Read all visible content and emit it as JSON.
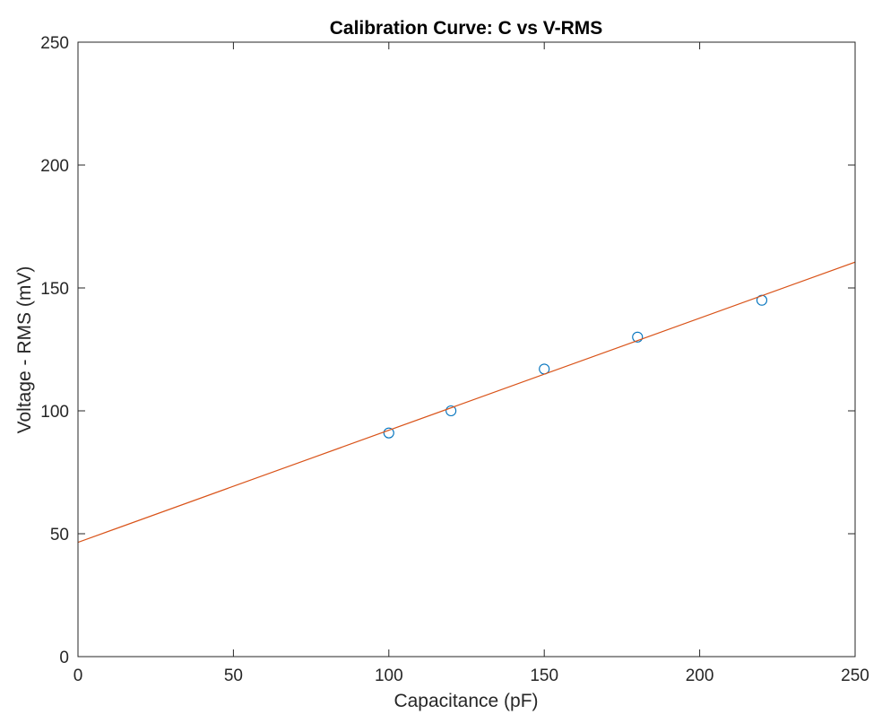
{
  "chart_data": {
    "type": "scatter",
    "title": "Calibration Curve: C vs V-RMS",
    "xlabel": "Capacitance (pF)",
    "ylabel": "Voltage - RMS (mV)",
    "xlim": [
      0,
      250
    ],
    "ylim": [
      0,
      250
    ],
    "xticks": [
      0,
      50,
      100,
      150,
      200,
      250
    ],
    "yticks": [
      0,
      50,
      100,
      150,
      200,
      250
    ],
    "grid": false,
    "series": [
      {
        "kind": "scatter",
        "marker": "circle-open",
        "color": "#0072BD",
        "x": [
          100,
          120,
          150,
          180,
          220
        ],
        "y": [
          91,
          100,
          117,
          130,
          145
        ]
      },
      {
        "kind": "line",
        "color": "#D95319",
        "x": [
          0,
          250
        ],
        "y": [
          46.5,
          160.5
        ]
      }
    ]
  }
}
